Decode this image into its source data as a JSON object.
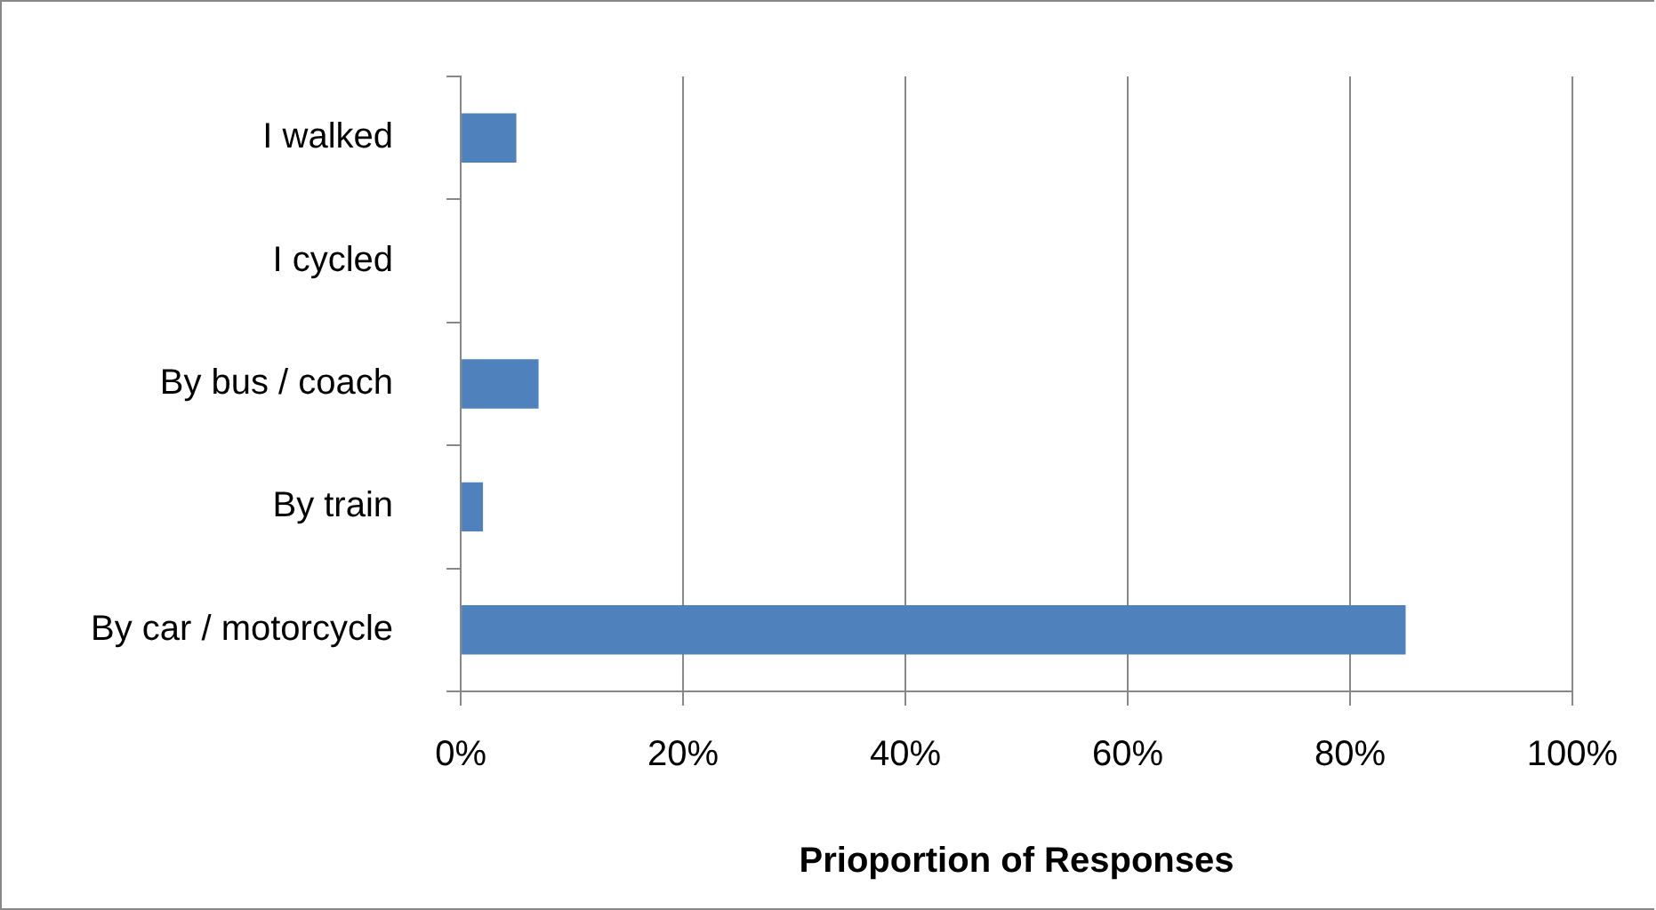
{
  "chart_data": {
    "type": "bar",
    "orientation": "horizontal",
    "categories": [
      "I walked",
      "I cycled",
      "By bus / coach",
      "By train",
      "By car / motorcycle"
    ],
    "values": [
      5,
      0,
      7,
      2,
      85
    ],
    "color": "#4f81bd",
    "xlabel": "Prioportion of Responses",
    "xlim": [
      0,
      100
    ],
    "xticks": [
      {
        "value": 0,
        "label": "0%"
      },
      {
        "value": 20,
        "label": "20%"
      },
      {
        "value": 40,
        "label": "40%"
      },
      {
        "value": 60,
        "label": "60%"
      },
      {
        "value": 80,
        "label": "80%"
      },
      {
        "value": 100,
        "label": "100%"
      }
    ],
    "grid": "x",
    "legend": false
  }
}
